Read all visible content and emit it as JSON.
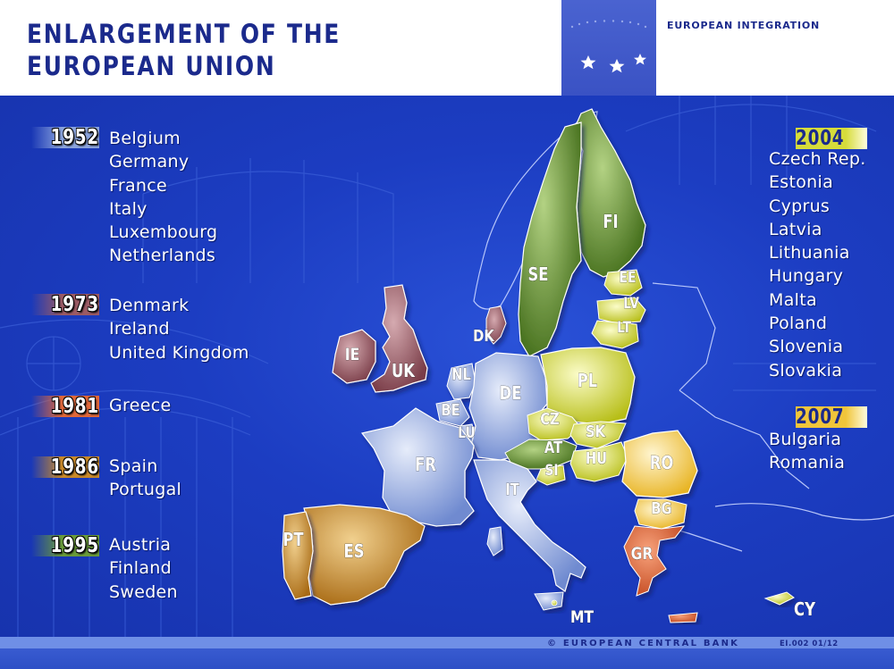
{
  "header": {
    "title_line1": "ENLARGEMENT OF THE",
    "title_line2": "EUROPEAN UNION",
    "brand": "EUROPEAN INTEGRATION"
  },
  "footer": {
    "copyright": "© EUROPEAN CENTRAL BANK",
    "code": "EI.002 01/12"
  },
  "colors": {
    "1952": "#8aa3dc",
    "1973": "#9a5a64",
    "1981": "#e0683a",
    "1986": "#c98a2a",
    "1995": "#6a9a3a",
    "2004": "#d6dc3a",
    "2007": "#f0c53a",
    "background": "#1c3dc2",
    "title": "#1b2a8c"
  },
  "legend": {
    "left": [
      {
        "year": "1952",
        "countries": [
          "Belgium",
          "Germany",
          "France",
          "Italy",
          "Luxembourg",
          "Netherlands"
        ]
      },
      {
        "year": "1973",
        "countries": [
          "Denmark",
          "Ireland",
          "United Kingdom"
        ]
      },
      {
        "year": "1981",
        "countries": [
          "Greece"
        ]
      },
      {
        "year": "1986",
        "countries": [
          "Spain",
          "Portugal"
        ]
      },
      {
        "year": "1995",
        "countries": [
          "Austria",
          "Finland",
          "Sweden"
        ]
      }
    ],
    "right": [
      {
        "year": "2004",
        "countries": [
          "Czech Rep.",
          "Estonia",
          "Cyprus",
          "Latvia",
          "Lithuania",
          "Hungary",
          "Malta",
          "Poland",
          "Slovenia",
          "Slovakia"
        ]
      },
      {
        "year": "2007",
        "countries": [
          "Bulgaria",
          "Romania"
        ]
      }
    ]
  },
  "map": {
    "labels": [
      "FI",
      "SE",
      "EE",
      "LV",
      "LT",
      "DK",
      "IE",
      "UK",
      "NL",
      "DE",
      "PL",
      "BE",
      "LU",
      "CZ",
      "SK",
      "AT",
      "SI",
      "HU",
      "RO",
      "FR",
      "IT",
      "BG",
      "PT",
      "ES",
      "GR",
      "MT",
      "CY"
    ]
  }
}
